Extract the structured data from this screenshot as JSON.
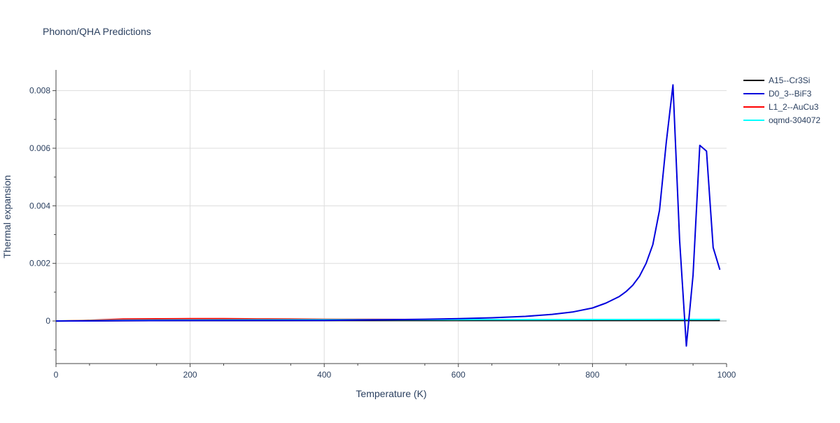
{
  "chart_data": {
    "type": "line",
    "title": "Phonon/QHA Predictions",
    "xlabel": "Temperature (K)",
    "ylabel": "Thermal expansion",
    "xlim": [
      0,
      1000
    ],
    "ylim": [
      -0.00148,
      0.00872
    ],
    "x_ticks": [
      0,
      200,
      400,
      600,
      800,
      1000
    ],
    "x_tick_labels": [
      "0",
      "200",
      "400",
      "600",
      "800",
      "1000"
    ],
    "y_ticks": [
      0,
      0.002,
      0.004,
      0.006,
      0.008
    ],
    "y_tick_labels": [
      "0",
      "0.002",
      "0.004",
      "0.006",
      "0.008"
    ],
    "grid": true,
    "legend_position": "top-right",
    "series": [
      {
        "name": "A15--Cr3Si",
        "color": "#000000",
        "x": [
          0,
          40,
          100,
          200,
          300,
          400,
          500,
          600,
          700,
          800,
          900,
          990
        ],
        "y": [
          0,
          5e-06,
          1.2e-05,
          1.5e-05,
          1.7e-05,
          1.8e-05,
          1.9e-05,
          2e-05,
          2e-05,
          2.1e-05,
          2.1e-05,
          2.2e-05
        ]
      },
      {
        "name": "L1_2--AuCu3",
        "color": "#ff0000",
        "x": [
          0,
          40,
          100,
          150,
          200,
          250,
          300,
          350,
          400,
          450,
          500,
          550,
          600
        ],
        "y": [
          0,
          1.5e-05,
          6.5e-05,
          7.5e-05,
          8e-05,
          7.8e-05,
          7.2e-05,
          6.6e-05,
          6e-05,
          5.6e-05,
          5.2e-05,
          5e-05,
          4.8e-05
        ]
      },
      {
        "name": "oqmd-304072",
        "color": "#00ffff",
        "x": [
          0,
          40,
          100,
          200,
          300,
          400,
          500,
          600,
          700,
          800,
          900,
          990
        ],
        "y": [
          0,
          8e-06,
          2.5e-05,
          3.5e-05,
          4e-05,
          4.3e-05,
          4.5e-05,
          4.7e-05,
          4.8e-05,
          5e-05,
          5.2e-05,
          5.5e-05
        ]
      },
      {
        "name": "D0_3--BiF3",
        "color": "#0000dd",
        "x": [
          0,
          40,
          60,
          100,
          200,
          300,
          400,
          500,
          550,
          600,
          650,
          700,
          740,
          770,
          800,
          820,
          840,
          850,
          860,
          870,
          880,
          890,
          900,
          910,
          920,
          930,
          940,
          950,
          960,
          970,
          980,
          990
        ],
        "y": [
          0,
          5e-07,
          3e-06,
          1e-05,
          1.5e-05,
          1.8e-05,
          2e-05,
          4.5e-05,
          6e-05,
          8e-05,
          0.00011,
          0.00016,
          0.00023,
          0.00031,
          0.00045,
          0.00062,
          0.00085,
          0.00102,
          0.00124,
          0.00155,
          0.002,
          0.00265,
          0.00385,
          0.0062,
          0.0082,
          0.0028,
          -0.00087,
          0.0016,
          0.0061,
          0.0059,
          0.00255,
          0.00178
        ]
      }
    ]
  }
}
